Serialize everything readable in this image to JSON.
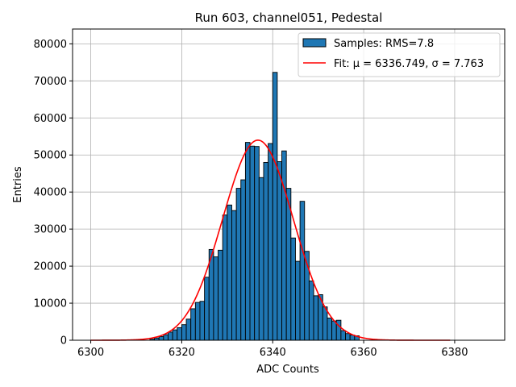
{
  "chart_data": {
    "type": "bar",
    "title": "Run 603, channel051, Pedestal",
    "xlabel": "ADC Counts",
    "ylabel": "Entries",
    "xlim": [
      6296,
      6391
    ],
    "ylim": [
      0,
      84000
    ],
    "grid": true,
    "legend_position": "top-right",
    "x_ticks": [
      6300,
      6320,
      6340,
      6360,
      6380
    ],
    "y_ticks": [
      0,
      10000,
      20000,
      30000,
      40000,
      50000,
      60000,
      70000,
      80000
    ],
    "histogram": {
      "name": "Samples: RMS=7.8",
      "color": "#1f77b4",
      "edge_color": "#000000",
      "bin_width": 1,
      "bin_starts": [
        6313,
        6314,
        6315,
        6316,
        6317,
        6318,
        6319,
        6320,
        6321,
        6322,
        6323,
        6324,
        6325,
        6326,
        6327,
        6328,
        6329,
        6330,
        6331,
        6332,
        6333,
        6334,
        6335,
        6336,
        6337,
        6338,
        6339,
        6340,
        6341,
        6342,
        6343,
        6344,
        6345,
        6346,
        6347,
        6348,
        6349,
        6350,
        6351,
        6352,
        6353,
        6354,
        6355,
        6356,
        6357,
        6358
      ],
      "counts": [
        300,
        600,
        1000,
        1500,
        2200,
        2800,
        3400,
        4200,
        5700,
        8500,
        10200,
        10500,
        17000,
        24500,
        22500,
        24300,
        33800,
        36500,
        35000,
        41000,
        43300,
        53400,
        52400,
        52300,
        43900,
        48000,
        53100,
        72300,
        48200,
        51100,
        41000,
        27600,
        21300,
        37500,
        24000,
        16000,
        12000,
        12300,
        9000,
        6000,
        5200,
        5400,
        2600,
        1800,
        1400,
        1200
      ]
    },
    "fit": {
      "name": "Fit: μ = 6336.749, σ = 7.763",
      "color": "#ff0000",
      "mu": 6336.749,
      "sigma": 7.763,
      "amplitude": 54000,
      "x_range": [
        6300,
        6379
      ]
    }
  }
}
